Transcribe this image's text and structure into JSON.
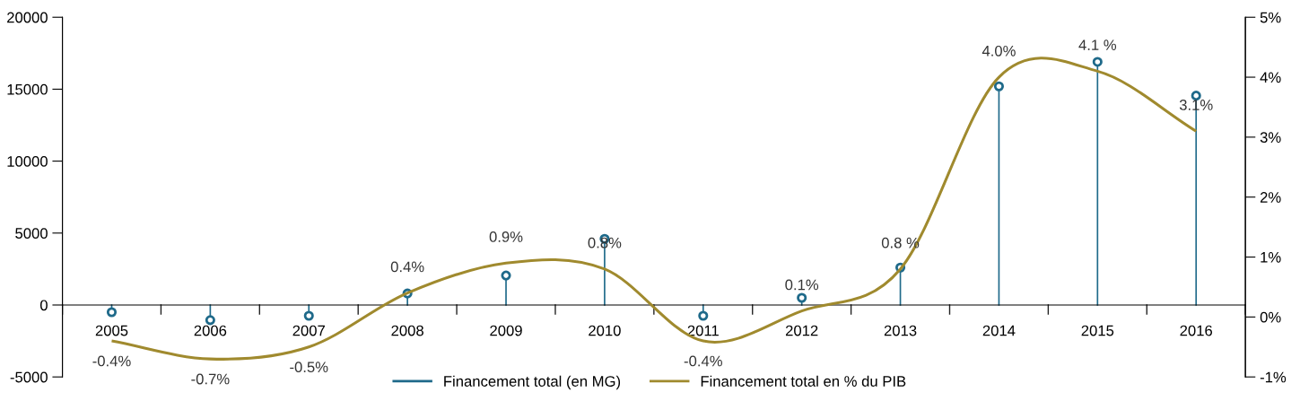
{
  "chart_data": {
    "type": "lollipop",
    "categories": [
      "2005",
      "2006",
      "2007",
      "2008",
      "2009",
      "2010",
      "2011",
      "2012",
      "2013",
      "2014",
      "2015",
      "2016"
    ],
    "series": [
      {
        "name": "Financement total (en MG)",
        "color": "#1f6a8a",
        "marker": "circle",
        "values": [
          -500,
          -1050,
          -750,
          800,
          2050,
          4600,
          -750,
          500,
          2600,
          15200,
          16900,
          14550
        ]
      },
      {
        "name": "Financement total en % du PIB",
        "type": "line",
        "axis": "y2",
        "color": "#a08a2e",
        "marker": "none",
        "line_style": "solid",
        "values": [
          -0.4,
          -0.7,
          -0.5,
          0.4,
          0.9,
          0.8,
          -0.4,
          0.1,
          0.8,
          4.0,
          4.1,
          3.1
        ],
        "value_labels": [
          "-0.4%",
          "-0.7%",
          "-0.5%",
          "0.4%",
          "0.9%",
          "0.8%",
          "-0.4%",
          "0.1%",
          "0.8 %",
          "4.0%",
          "4.1 %",
          "3.1%"
        ]
      }
    ],
    "ylim": [
      -5000,
      20000
    ],
    "yticks": [
      -5000,
      0,
      5000,
      10000,
      15000,
      20000
    ],
    "y2lim": [
      -1,
      5
    ],
    "y2ticks": [
      {
        "value": -1,
        "label": "-1%"
      },
      {
        "value": 0,
        "label": "0%"
      },
      {
        "value": 1,
        "label": "1%"
      },
      {
        "value": 2,
        "label": "2%"
      },
      {
        "value": 3,
        "label": "3%"
      },
      {
        "value": 4,
        "label": "4%"
      },
      {
        "value": 5,
        "label": "5%"
      }
    ],
    "grid": false,
    "legend": "bottom"
  }
}
